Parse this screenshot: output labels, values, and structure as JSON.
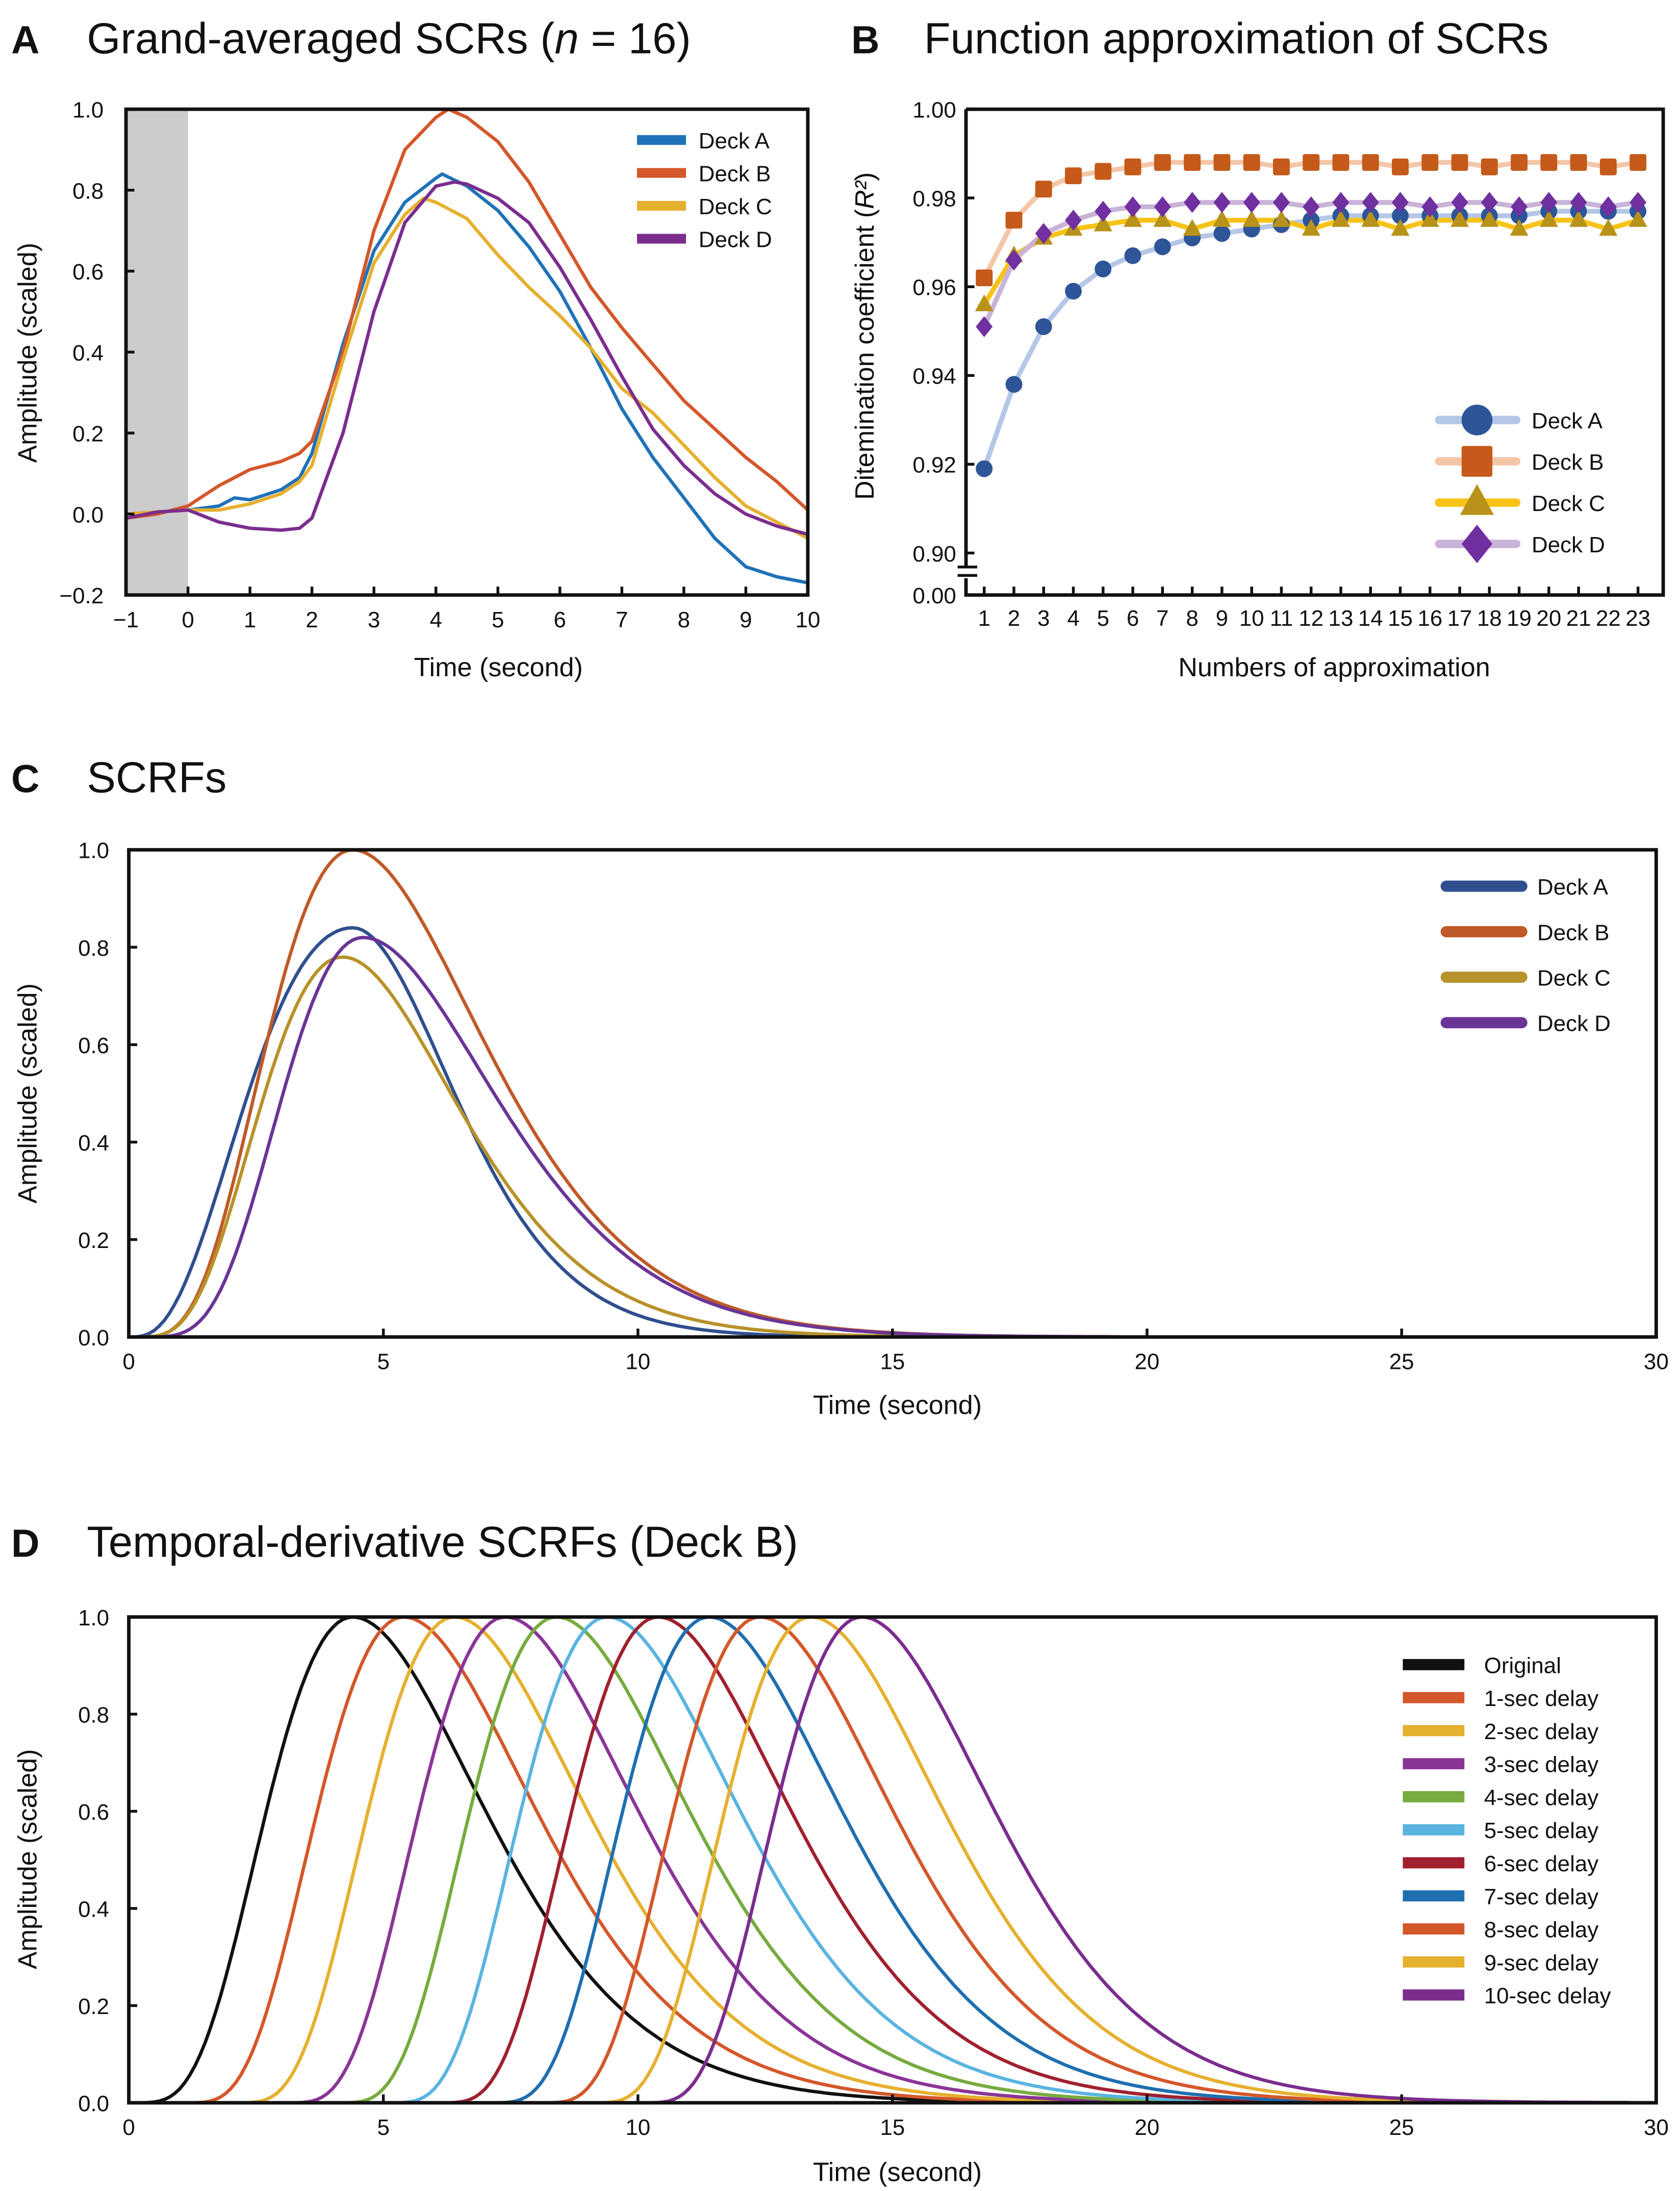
{
  "chart_data": [
    {
      "panel": "A",
      "type": "line",
      "title": "Grand-averaged SCRs (",
      "title_n": "n",
      "title_rest": " = 16)",
      "xlabel": "Time (second)",
      "ylabel": "Amplitude (scaled)",
      "xlim": [
        -1,
        10
      ],
      "ylim": [
        -0.2,
        1.0
      ],
      "xticks": [
        "−1",
        "0",
        "1",
        "2",
        "3",
        "4",
        "5",
        "6",
        "7",
        "8",
        "9",
        "10"
      ],
      "yticks": [
        "−0.2",
        "0.0",
        "0.2",
        "0.4",
        "0.6",
        "0.8",
        "1.0"
      ],
      "baseline_shade": [
        -1,
        0
      ],
      "legend_position": "top-right",
      "series": [
        {
          "name": "Deck A",
          "color": "#1f72b8",
          "x": [
            -1,
            -0.5,
            0,
            0.5,
            0.75,
            1,
            1.5,
            1.8,
            2,
            2.5,
            3,
            3.5,
            4,
            4.1,
            4.5,
            5,
            5.5,
            6,
            6.5,
            7,
            7.5,
            8,
            8.5,
            9,
            9.5,
            10
          ],
          "y": [
            0,
            0.005,
            0.01,
            0.02,
            0.04,
            0.035,
            0.06,
            0.09,
            0.15,
            0.42,
            0.65,
            0.77,
            0.83,
            0.84,
            0.81,
            0.75,
            0.66,
            0.55,
            0.41,
            0.26,
            0.14,
            0.04,
            -0.06,
            -0.13,
            -0.155,
            -0.17
          ]
        },
        {
          "name": "Deck B",
          "color": "#d4572a",
          "x": [
            -1,
            -0.5,
            0,
            0.5,
            1,
            1.5,
            1.8,
            2,
            2.5,
            3,
            3.5,
            4,
            4.2,
            4.5,
            5,
            5.5,
            6,
            6.5,
            7,
            7.5,
            8,
            8.5,
            9,
            9.5,
            10
          ],
          "y": [
            -0.01,
            0,
            0.02,
            0.07,
            0.11,
            0.13,
            0.15,
            0.18,
            0.4,
            0.7,
            0.9,
            0.98,
            1.0,
            0.98,
            0.92,
            0.82,
            0.69,
            0.56,
            0.46,
            0.37,
            0.28,
            0.21,
            0.14,
            0.08,
            0.01
          ]
        },
        {
          "name": "Deck C",
          "color": "#e6b02f",
          "x": [
            -1,
            -0.5,
            0,
            0.5,
            1,
            1.5,
            1.8,
            2,
            2.5,
            3,
            3.5,
            3.8,
            4,
            4.5,
            5,
            5.5,
            6,
            6.5,
            7,
            7.5,
            8,
            8.5,
            9,
            9.5,
            10
          ],
          "y": [
            0,
            0.005,
            0.01,
            0.01,
            0.025,
            0.05,
            0.08,
            0.12,
            0.38,
            0.62,
            0.74,
            0.78,
            0.77,
            0.73,
            0.64,
            0.56,
            0.49,
            0.41,
            0.31,
            0.25,
            0.17,
            0.09,
            0.02,
            -0.02,
            -0.06
          ]
        },
        {
          "name": "Deck D",
          "color": "#7b2d8e",
          "x": [
            -1,
            -0.5,
            0,
            0.5,
            1,
            1.5,
            1.8,
            2,
            2.5,
            3,
            3.5,
            4,
            4.3,
            4.5,
            5,
            5.5,
            6,
            6.5,
            7,
            7.5,
            8,
            8.5,
            9,
            9.5,
            10
          ],
          "y": [
            -0.01,
            0.005,
            0.01,
            -0.02,
            -0.035,
            -0.04,
            -0.035,
            -0.01,
            0.2,
            0.5,
            0.72,
            0.81,
            0.82,
            0.815,
            0.78,
            0.72,
            0.61,
            0.48,
            0.34,
            0.21,
            0.12,
            0.05,
            0.0,
            -0.03,
            -0.05
          ]
        }
      ]
    },
    {
      "panel": "B",
      "type": "line",
      "title": "Function approximation of SCRs",
      "xlabel": "Numbers of approximation",
      "ylabel": "Ditemination coefficient (",
      "ylabel_r": "R²",
      "ylabel_end": ")",
      "ylim": [
        0.9,
        1.0
      ],
      "axis_break": true,
      "xticks": [
        "1",
        "2",
        "3",
        "4",
        "5",
        "6",
        "7",
        "8",
        "9",
        "10",
        "11",
        "12",
        "13",
        "14",
        "15",
        "16",
        "17",
        "18",
        "19",
        "20",
        "21",
        "22",
        "23"
      ],
      "yticks": [
        {
          "v": 0.9,
          "label": "0.90"
        },
        {
          "v": 0.92,
          "label": "0.92"
        },
        {
          "v": 0.94,
          "label": "0.94"
        },
        {
          "v": 0.96,
          "label": "0.96"
        },
        {
          "v": 0.98,
          "label": "0.98"
        },
        {
          "v": 1.0,
          "label": "1.00"
        }
      ],
      "ybottom_label": "0.00",
      "legend_position": "bottom-right",
      "series": [
        {
          "name": "Deck A",
          "marker": "circle",
          "color": "#2e5597",
          "line_color": "#b4c7e7",
          "values": [
            0.919,
            0.938,
            0.951,
            0.959,
            0.964,
            0.967,
            0.969,
            0.971,
            0.972,
            0.973,
            0.974,
            0.975,
            0.976,
            0.976,
            0.976,
            0.976,
            0.976,
            0.976,
            0.976,
            0.977,
            0.977,
            0.977,
            0.977
          ]
        },
        {
          "name": "Deck B",
          "marker": "square",
          "color": "#c55a1a",
          "line_color": "#f4c6a8",
          "values": [
            0.962,
            0.975,
            0.982,
            0.985,
            0.986,
            0.987,
            0.988,
            0.988,
            0.988,
            0.988,
            0.987,
            0.988,
            0.988,
            0.988,
            0.987,
            0.988,
            0.988,
            0.987,
            0.988,
            0.988,
            0.988,
            0.987,
            0.988
          ]
        },
        {
          "name": "Deck C",
          "marker": "triangle",
          "color": "#b8921a",
          "line_color": "#f8c318",
          "values": [
            0.956,
            0.967,
            0.971,
            0.973,
            0.974,
            0.975,
            0.975,
            0.973,
            0.975,
            0.975,
            0.975,
            0.973,
            0.975,
            0.975,
            0.973,
            0.975,
            0.975,
            0.975,
            0.973,
            0.975,
            0.975,
            0.973,
            0.975
          ]
        },
        {
          "name": "Deck D",
          "marker": "diamond",
          "color": "#7030a0",
          "line_color": "#c9b3d9",
          "values": [
            0.951,
            0.966,
            0.972,
            0.975,
            0.977,
            0.978,
            0.978,
            0.979,
            0.979,
            0.979,
            0.979,
            0.978,
            0.979,
            0.979,
            0.979,
            0.978,
            0.979,
            0.979,
            0.978,
            0.979,
            0.979,
            0.978,
            0.979
          ]
        }
      ]
    },
    {
      "panel": "C",
      "type": "line",
      "title": "SCRFs",
      "xlabel": "Time (second)",
      "ylabel": "Amplitude (scaled)",
      "xlim": [
        0,
        30
      ],
      "ylim": [
        0,
        1.0
      ],
      "xticks": [
        {
          "v": 0,
          "label": "0"
        },
        {
          "v": 5,
          "label": "5"
        },
        {
          "v": 10,
          "label": "10"
        },
        {
          "v": 15,
          "label": "15"
        },
        {
          "v": 20,
          "label": "20"
        },
        {
          "v": 25,
          "label": "25"
        },
        {
          "v": 30,
          "label": "30"
        }
      ],
      "yticks": [
        {
          "v": 0,
          "label": "0.0"
        },
        {
          "v": 0.2,
          "label": "0.2"
        },
        {
          "v": 0.4,
          "label": "0.4"
        },
        {
          "v": 0.6,
          "label": "0.6"
        },
        {
          "v": 0.8,
          "label": "0.8"
        },
        {
          "v": 1.0,
          "label": "1.0"
        }
      ],
      "legend_position": "top-right",
      "series": [
        {
          "name": "Deck A",
          "color": "#2f4f8f",
          "peak_time": 4.4,
          "peak": 0.84,
          "rise_shape": 3.2,
          "decay_shape": 6.5
        },
        {
          "name": "Deck B",
          "color": "#c05a28",
          "peak_time": 4.4,
          "peak": 1.0,
          "rise_shape": 5,
          "decay_shape": 4
        },
        {
          "name": "Deck C",
          "color": "#b8922a",
          "peak_time": 4.2,
          "peak": 0.78,
          "rise_shape": 5,
          "decay_shape": 4.6
        },
        {
          "name": "Deck D",
          "color": "#6a3596",
          "peak_time": 4.6,
          "peak": 0.82,
          "rise_shape": 6.5,
          "decay_shape": 4.3
        }
      ]
    },
    {
      "panel": "D",
      "type": "line",
      "title": "Temporal-derivative SCRFs (Deck B)",
      "xlabel": "Time (second)",
      "ylabel": "Amplitude (scaled)",
      "xlim": [
        0,
        30
      ],
      "ylim": [
        0,
        1.0
      ],
      "xticks": [
        {
          "v": 0,
          "label": "0"
        },
        {
          "v": 5,
          "label": "5"
        },
        {
          "v": 10,
          "label": "10"
        },
        {
          "v": 15,
          "label": "15"
        },
        {
          "v": 20,
          "label": "20"
        },
        {
          "v": 25,
          "label": "25"
        },
        {
          "v": 30,
          "label": "30"
        }
      ],
      "yticks": [
        {
          "v": 0,
          "label": "0.0"
        },
        {
          "v": 0.2,
          "label": "0.2"
        },
        {
          "v": 0.4,
          "label": "0.4"
        },
        {
          "v": 0.6,
          "label": "0.6"
        },
        {
          "v": 0.8,
          "label": "0.8"
        },
        {
          "v": 1.0,
          "label": "1.0"
        }
      ],
      "legend_position": "right",
      "base_peak_time": 4.4,
      "rise_shape": 5,
      "decay_shape": 4,
      "series": [
        {
          "name": "Original",
          "delay": 0,
          "color": "#111111"
        },
        {
          "name": "1-sec delay",
          "delay": 1,
          "color": "#d4572a"
        },
        {
          "name": "2-sec delay",
          "delay": 2,
          "color": "#e6b02f"
        },
        {
          "name": "3-sec delay",
          "delay": 3,
          "color": "#8a3596"
        },
        {
          "name": "4-sec delay",
          "delay": 4,
          "color": "#77ab3f"
        },
        {
          "name": "5-sec delay",
          "delay": 5,
          "color": "#5ab4e0"
        },
        {
          "name": "6-sec delay",
          "delay": 6,
          "color": "#a0202f"
        },
        {
          "name": "7-sec delay",
          "delay": 7,
          "color": "#1f6fb0"
        },
        {
          "name": "8-sec delay",
          "delay": 8,
          "color": "#d4572a"
        },
        {
          "name": "9-sec delay",
          "delay": 9,
          "color": "#e6b02f"
        },
        {
          "name": "10-sec delay",
          "delay": 10,
          "color": "#7b2d8e"
        }
      ]
    }
  ]
}
